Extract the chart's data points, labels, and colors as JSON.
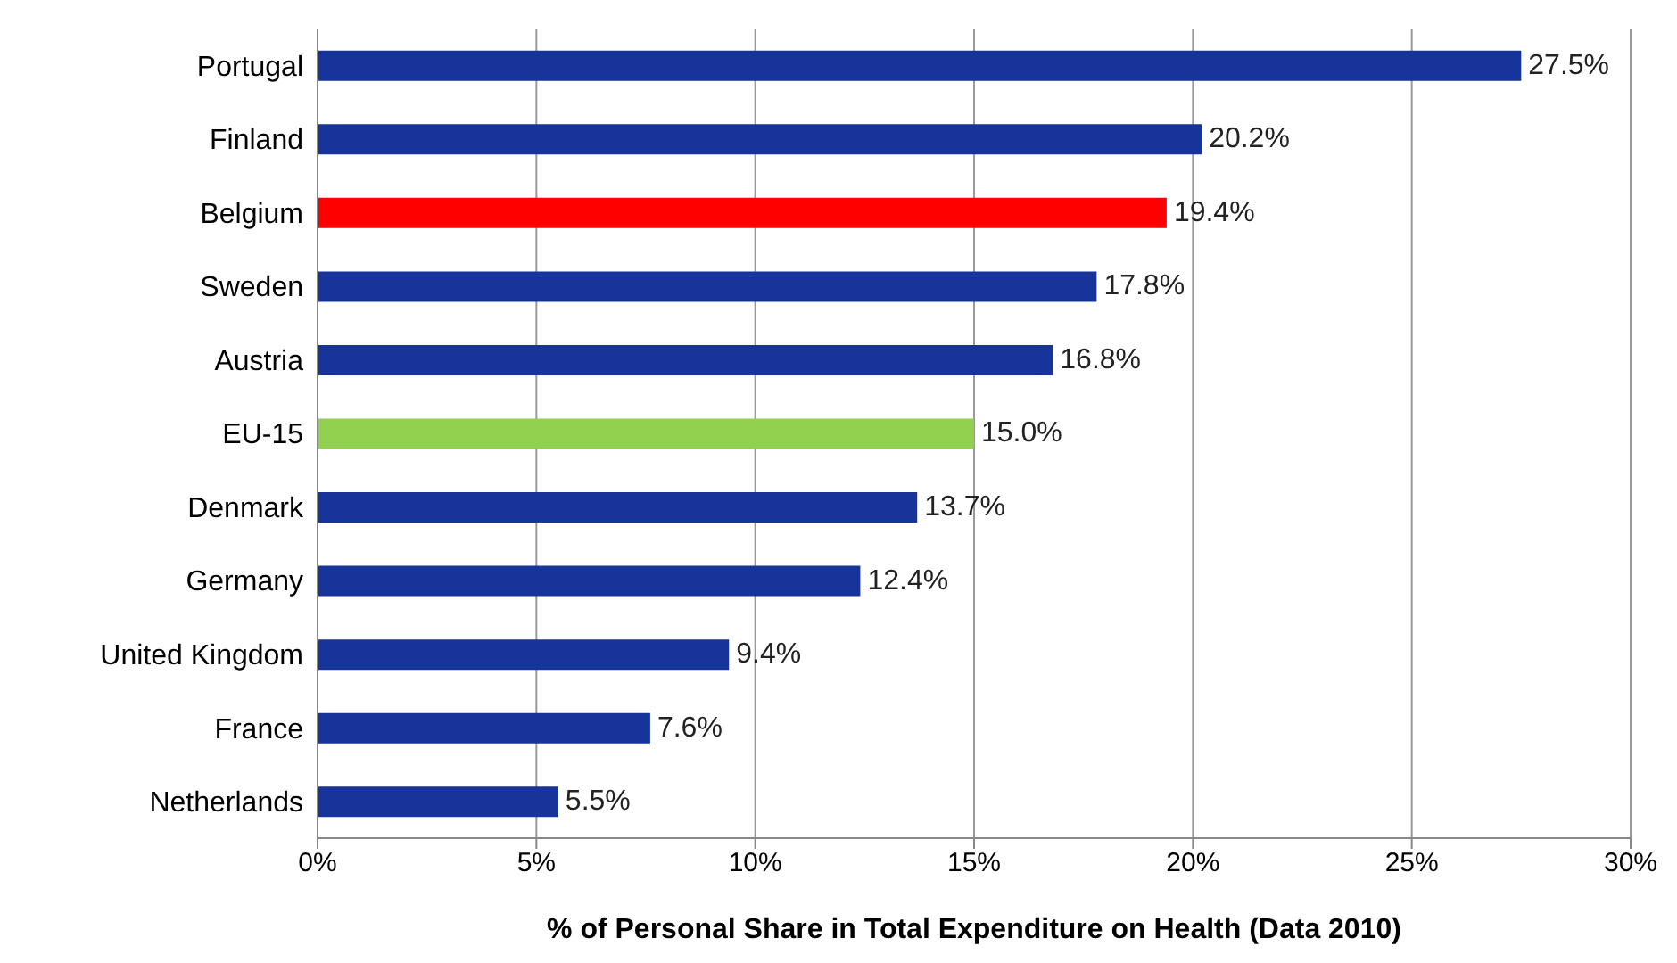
{
  "chart_data": {
    "type": "bar",
    "orientation": "horizontal",
    "xlabel": "% of Personal Share in Total Expenditure on Health (Data 2010)",
    "categories": [
      "Portugal",
      "Finland",
      "Belgium",
      "Sweden",
      "Austria",
      "EU-15",
      "Denmark",
      "Germany",
      "United Kingdom",
      "France",
      "Netherlands"
    ],
    "values": [
      27.5,
      20.2,
      19.4,
      17.8,
      16.8,
      15.0,
      13.7,
      12.4,
      9.4,
      7.6,
      5.5
    ],
    "colors": [
      "#17349a",
      "#17349a",
      "#ff0000",
      "#17349a",
      "#17349a",
      "#92d050",
      "#17349a",
      "#17349a",
      "#17349a",
      "#17349a",
      "#17349a"
    ],
    "value_labels": [
      "27.5%",
      "20.2%",
      "19.4%",
      "17.8%",
      "16.8%",
      "15.0%",
      "13.7%",
      "12.4%",
      "9.4%",
      "7.6%",
      "5.5%"
    ],
    "xlim": [
      0,
      30
    ],
    "xticks": [
      {
        "value": 0,
        "label": "0%"
      },
      {
        "value": 5,
        "label": "5%"
      },
      {
        "value": 10,
        "label": "10%"
      },
      {
        "value": 15,
        "label": "15%"
      },
      {
        "value": 20,
        "label": "20%"
      },
      {
        "value": 25,
        "label": "25%"
      },
      {
        "value": 30,
        "label": "30%"
      }
    ],
    "grid": "x"
  }
}
